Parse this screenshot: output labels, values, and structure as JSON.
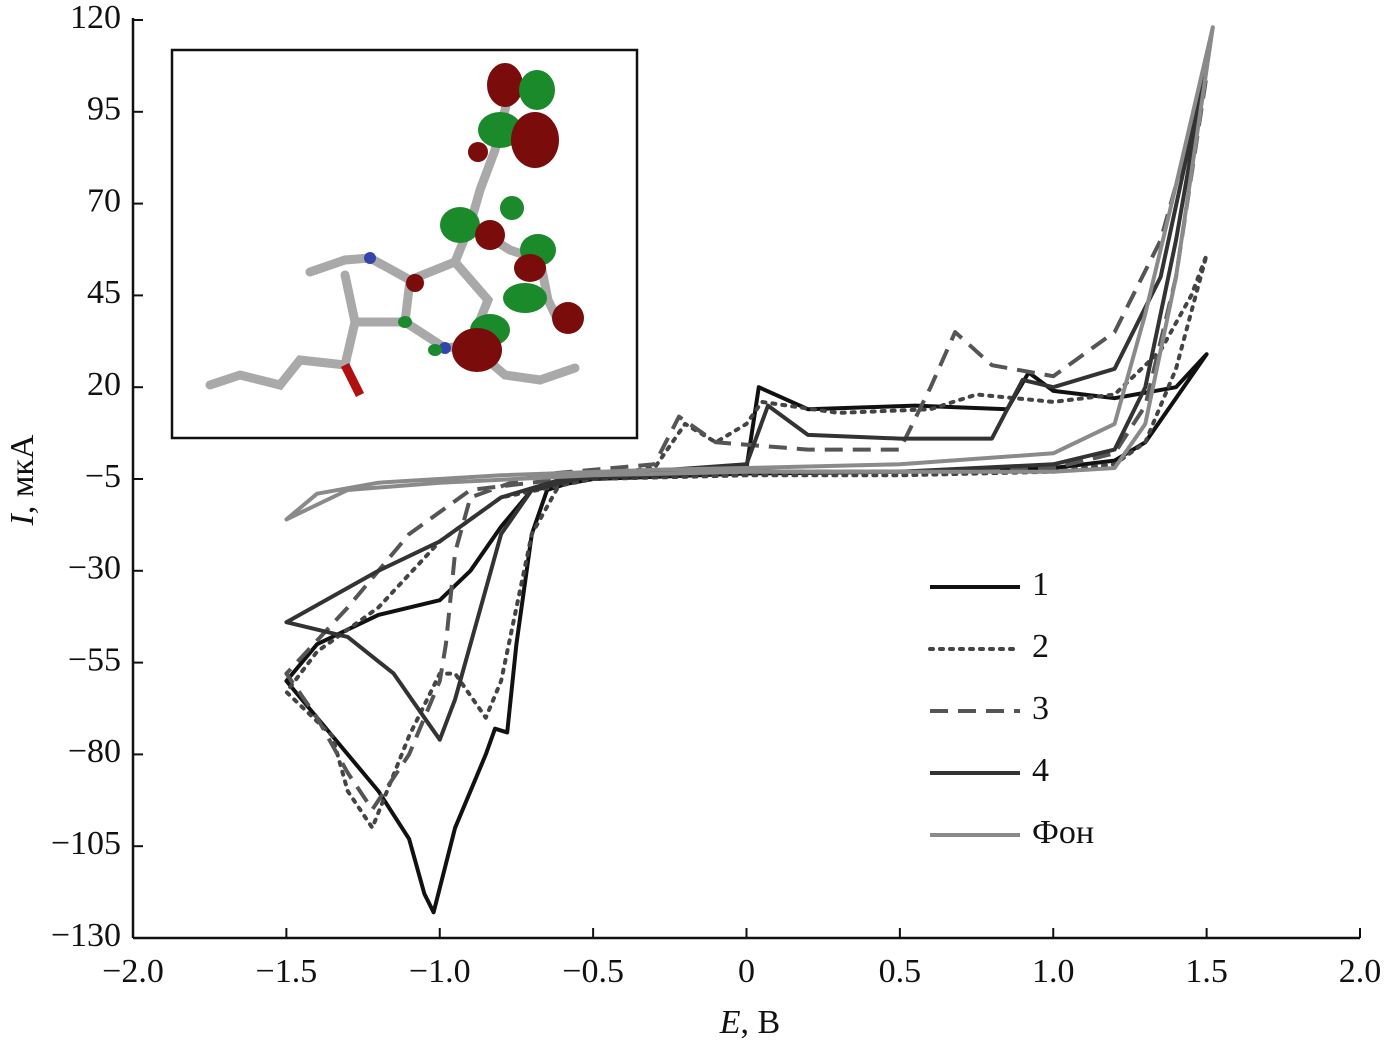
{
  "chart_data": {
    "type": "line",
    "x_label_symbol": "E",
    "x_label_rest": ", В",
    "y_label_symbol": "I",
    "y_label_rest": ", мкА",
    "xlim": [
      -2,
      2
    ],
    "xticks": [
      {
        "value": -2,
        "label": "−2.0"
      },
      {
        "value": -1.5,
        "label": "−1.5"
      },
      {
        "value": -1,
        "label": "−1.0"
      },
      {
        "value": -0.5,
        "label": "−0.5"
      },
      0,
      0.5,
      {
        "value": 1,
        "label": "1.0"
      },
      1.5,
      {
        "value": 2,
        "label": "2.0"
      }
    ],
    "ylim": [
      -130,
      120
    ],
    "yticks": [
      {
        "value": -130,
        "label": "−130"
      },
      {
        "value": -105,
        "label": "−105"
      },
      {
        "value": -80,
        "label": "−80"
      },
      {
        "value": -55,
        "label": "−55"
      },
      {
        "value": -30,
        "label": "−30"
      },
      {
        "value": -5,
        "label": "−5"
      },
      20,
      45,
      70,
      95,
      120
    ],
    "legend": "lower right",
    "series": [
      {
        "name": "1",
        "color": "#111111",
        "dash": "solid",
        "x": [
          0,
          -0.5,
          -0.7,
          -0.8,
          -0.9,
          -1.0,
          -1.2,
          -1.4,
          -1.5,
          -1.35,
          -1.2,
          -1.1,
          -1.05,
          -1.02,
          -0.95,
          -0.85,
          -0.82,
          -0.78,
          -0.75,
          -0.7,
          -0.65,
          -0.5,
          0,
          0.04,
          0.2,
          0.55,
          0.85,
          0.92,
          1.0,
          1.2,
          1.4,
          1.5,
          1.3,
          1.2,
          1.0,
          0.5,
          0
        ],
        "values": [
          -3.5,
          -5,
          -8,
          -18,
          -30,
          -38,
          -42,
          -50,
          -60,
          -75,
          -90,
          -103,
          -118,
          -123,
          -100,
          -80,
          -73,
          -74,
          -50,
          -20,
          -8,
          -4,
          -2,
          20,
          14,
          15,
          14,
          24,
          19,
          17,
          20,
          29,
          5,
          0,
          -2,
          -3,
          -3.5
        ]
      },
      {
        "name": "2",
        "color": "#444444",
        "dash": "dotted",
        "x": [
          0,
          -0.5,
          -0.8,
          -1.0,
          -1.2,
          -1.4,
          -1.5,
          -1.35,
          -1.3,
          -1.22,
          -1.1,
          -1.0,
          -0.95,
          -0.85,
          -0.8,
          -0.7,
          -0.6,
          -0.3,
          -0.2,
          -0.1,
          0,
          0.05,
          0.3,
          0.6,
          0.75,
          1.0,
          1.2,
          1.35,
          1.45,
          1.5,
          1.4,
          1.3,
          1.2,
          1.0,
          0.5,
          0
        ],
        "values": [
          -4,
          -5,
          -10,
          -22,
          -40,
          -52,
          -63,
          -75,
          -90,
          -100,
          -75,
          -58,
          -58,
          -70,
          -60,
          -20,
          -5,
          -2,
          10,
          5,
          10,
          16,
          13,
          14,
          18,
          16,
          18,
          30,
          45,
          56,
          25,
          5,
          -1,
          -3,
          -4,
          -4
        ]
      },
      {
        "name": "3",
        "color": "#555555",
        "dash": "dashed",
        "x": [
          0,
          -0.5,
          -0.9,
          -1.1,
          -1.3,
          -1.5,
          -1.4,
          -1.3,
          -1.22,
          -1.1,
          -1.0,
          -0.98,
          -0.95,
          -0.9,
          -0.7,
          -0.3,
          -0.22,
          -0.1,
          0.2,
          0.5,
          0.6,
          0.68,
          0.8,
          1.0,
          1.2,
          1.35,
          1.5,
          1.4,
          1.3,
          1.2,
          1.0,
          0.5,
          0
        ],
        "values": [
          -3,
          -4,
          -8,
          -20,
          -40,
          -58,
          -70,
          -85,
          -95,
          -80,
          -60,
          -50,
          -25,
          -10,
          -4,
          -1,
          12,
          5,
          3,
          3,
          20,
          35,
          26,
          23,
          35,
          60,
          105,
          50,
          15,
          2,
          -2,
          -3,
          -3
        ]
      },
      {
        "name": "4",
        "color": "#333333",
        "dash": "solid",
        "x": [
          0,
          -0.6,
          -0.8,
          -1.0,
          -1.2,
          -1.5,
          -1.3,
          -1.15,
          -1.05,
          -1.0,
          -0.95,
          -0.85,
          -0.8,
          -0.7,
          -0.5,
          0,
          0.07,
          0.2,
          0.5,
          0.8,
          0.9,
          1.0,
          1.2,
          1.35,
          1.5,
          1.4,
          1.3,
          1.2,
          1.0,
          0.5,
          0
        ],
        "values": [
          -3,
          -5,
          -10,
          -22,
          -30,
          -44,
          -48,
          -58,
          -70,
          -76,
          -65,
          -35,
          -20,
          -8,
          -4,
          -1,
          15,
          7,
          6,
          6,
          22,
          20,
          25,
          50,
          108,
          60,
          20,
          3,
          -1,
          -3,
          -3
        ]
      },
      {
        "name": "Фон",
        "color": "#8a8a8a",
        "dash": "solid",
        "x": [
          0,
          -0.5,
          -1.0,
          -1.3,
          -1.5,
          -1.4,
          -1.2,
          -0.8,
          -0.3,
          0,
          0.5,
          1.0,
          1.2,
          1.3,
          1.4,
          1.52,
          1.4,
          1.3,
          1.2,
          1.0,
          0.5,
          0
        ],
        "values": [
          -3,
          -4,
          -6,
          -8,
          -16,
          -9,
          -6,
          -4,
          -2.5,
          -2,
          -1,
          2,
          10,
          40,
          75,
          118,
          50,
          10,
          -2,
          -3,
          -3,
          -3
        ]
      }
    ]
  }
}
